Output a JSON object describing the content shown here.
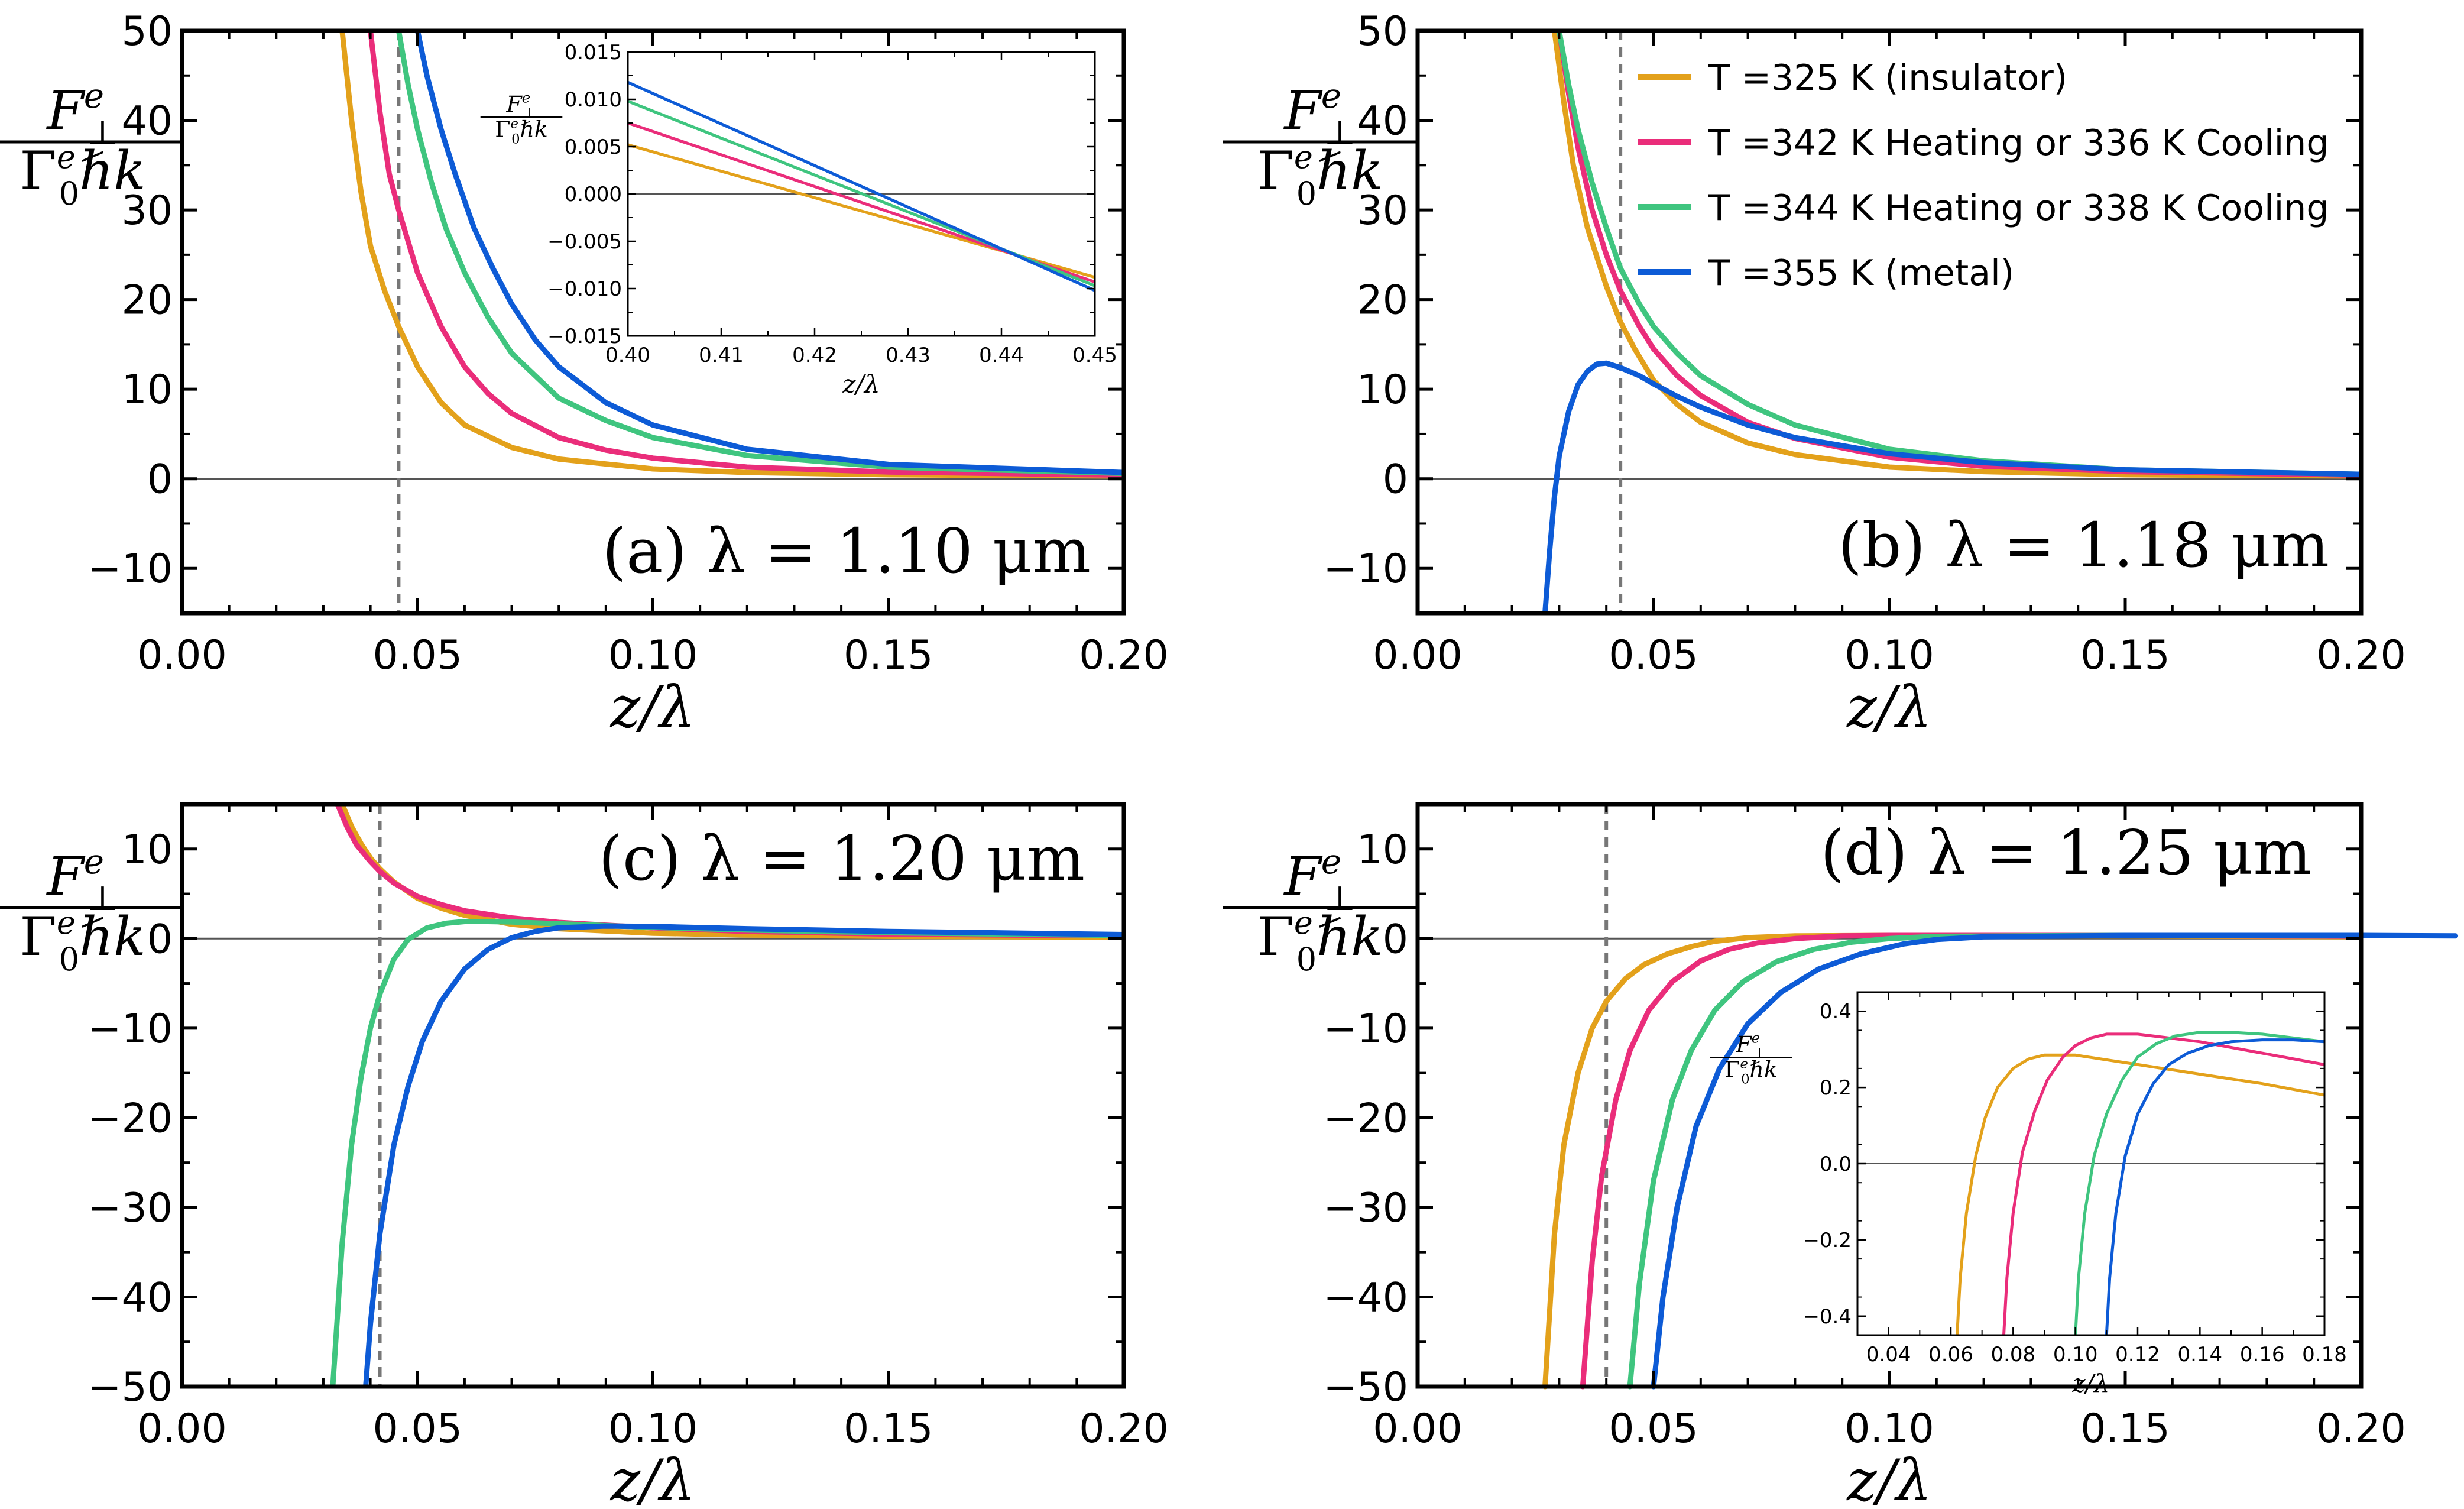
{
  "figure": {
    "y_label": {
      "numerator": "F",
      "num_sup": "e",
      "num_sub": "⊥",
      "denominator": "Γ",
      "den_sup": "e",
      "den_sub": "0",
      "den_rest": "ℏk"
    },
    "legend": [
      {
        "label": "T =325 K (insulator)",
        "color": "#E3A11B"
      },
      {
        "label": "T =342 K Heating or 336 K Cooling",
        "color": "#EA2D7A"
      },
      {
        "label": "T =344 K Heating or 338 K Cooling",
        "color": "#3FC57F"
      },
      {
        "label": "T =355 K (metal)",
        "color": "#0D5BD6"
      }
    ]
  },
  "chart_data": [
    {
      "panel": "a",
      "type": "line",
      "label": "(a) λ = 1.10 μm",
      "xlabel": "z/λ",
      "xlim": [
        0,
        0.2
      ],
      "ylim": [
        -15,
        50
      ],
      "xticks": [
        "0.00",
        "0.05",
        "0.10",
        "0.15",
        "0.20"
      ],
      "yticks": [
        "−10",
        "0",
        "10",
        "20",
        "30",
        "40",
        "50"
      ],
      "yticks_values": [
        -10,
        0,
        10,
        20,
        30,
        40,
        50
      ],
      "vline": 0.046,
      "series": [
        {
          "color": "#E3A11B",
          "x": [
            0.034,
            0.036,
            0.038,
            0.04,
            0.043,
            0.046,
            0.05,
            0.055,
            0.06,
            0.07,
            0.08,
            0.1,
            0.12,
            0.15,
            0.2
          ],
          "y": [
            50,
            40,
            32,
            26,
            21,
            17,
            12.5,
            8.5,
            6,
            3.5,
            2.2,
            1.1,
            0.7,
            0.45,
            0.3
          ]
        },
        {
          "color": "#EA2D7A",
          "x": [
            0.04,
            0.042,
            0.044,
            0.046,
            0.05,
            0.055,
            0.06,
            0.065,
            0.07,
            0.08,
            0.09,
            0.1,
            0.12,
            0.15,
            0.2
          ],
          "y": [
            50,
            41,
            34,
            30,
            23,
            17,
            12.5,
            9.5,
            7.3,
            4.6,
            3.2,
            2.3,
            1.3,
            0.75,
            0.4
          ]
        },
        {
          "color": "#3FC57F",
          "x": [
            0.046,
            0.048,
            0.05,
            0.053,
            0.056,
            0.06,
            0.065,
            0.07,
            0.08,
            0.09,
            0.1,
            0.12,
            0.15,
            0.2
          ],
          "y": [
            50,
            44,
            39,
            33,
            28,
            23,
            18,
            14,
            9,
            6.5,
            4.6,
            2.6,
            1.3,
            0.6
          ]
        },
        {
          "color": "#0D5BD6",
          "x": [
            0.05,
            0.052,
            0.055,
            0.058,
            0.062,
            0.066,
            0.07,
            0.075,
            0.08,
            0.09,
            0.1,
            0.12,
            0.15,
            0.2
          ],
          "y": [
            50,
            45,
            39,
            34,
            28,
            23.5,
            19.5,
            15.5,
            12.5,
            8.5,
            6,
            3.3,
            1.6,
            0.7
          ]
        }
      ],
      "inset": {
        "xlabel": "z/λ",
        "xlim": [
          0.4,
          0.45
        ],
        "ylim": [
          -0.015,
          0.015
        ],
        "xticks": [
          "0.40",
          "0.41",
          "0.42",
          "0.43",
          "0.44",
          "0.45"
        ],
        "yticks": [
          "0.015",
          "0.010",
          "0.005",
          "0.000",
          "−0.005",
          "−0.010",
          "−0.015"
        ],
        "yticks_values": [
          0.015,
          0.01,
          0.005,
          0,
          -0.005,
          -0.01,
          -0.015
        ],
        "series": [
          {
            "color": "#E3A11B",
            "x": [
              0.4,
              0.45
            ],
            "y": [
              0.0052,
              -0.0088
            ]
          },
          {
            "color": "#EA2D7A",
            "x": [
              0.4,
              0.45
            ],
            "y": [
              0.0075,
              -0.0093
            ]
          },
          {
            "color": "#3FC57F",
            "x": [
              0.4,
              0.45
            ],
            "y": [
              0.0098,
              -0.0097
            ]
          },
          {
            "color": "#0D5BD6",
            "x": [
              0.4,
              0.45
            ],
            "y": [
              0.0118,
              -0.0102
            ]
          }
        ]
      }
    },
    {
      "panel": "b",
      "type": "line",
      "label": "(b) λ = 1.18 μm",
      "xlabel": "z/λ",
      "xlim": [
        0,
        0.2
      ],
      "ylim": [
        -15,
        50
      ],
      "xticks": [
        "0.00",
        "0.05",
        "0.10",
        "0.15",
        "0.20"
      ],
      "yticks": [
        "−10",
        "0",
        "10",
        "20",
        "30",
        "40",
        "50"
      ],
      "yticks_values": [
        -10,
        0,
        10,
        20,
        30,
        40,
        50
      ],
      "vline": 0.043,
      "legend_position": "top-right",
      "series": [
        {
          "color": "#E3A11B",
          "x": [
            0.029,
            0.031,
            0.033,
            0.036,
            0.04,
            0.043,
            0.046,
            0.05,
            0.055,
            0.06,
            0.07,
            0.08,
            0.1,
            0.12,
            0.15,
            0.2
          ],
          "y": [
            50,
            42,
            35,
            28,
            21.5,
            17.5,
            14.5,
            11,
            8.3,
            6.3,
            4,
            2.7,
            1.3,
            0.8,
            0.45,
            0.3
          ]
        },
        {
          "color": "#EA2D7A",
          "x": [
            0.03,
            0.032,
            0.034,
            0.037,
            0.04,
            0.043,
            0.047,
            0.05,
            0.055,
            0.06,
            0.07,
            0.08,
            0.1,
            0.12,
            0.15,
            0.2
          ],
          "y": [
            50,
            43,
            37,
            30,
            25,
            21,
            17,
            14.5,
            11.5,
            9.3,
            6.3,
            4.5,
            2.4,
            1.4,
            0.8,
            0.4
          ]
        },
        {
          "color": "#3FC57F",
          "x": [
            0.03,
            0.032,
            0.034,
            0.037,
            0.04,
            0.043,
            0.047,
            0.05,
            0.055,
            0.06,
            0.07,
            0.08,
            0.1,
            0.12,
            0.15,
            0.2
          ],
          "y": [
            50,
            44,
            39,
            33,
            28,
            23.5,
            19.5,
            17,
            14,
            11.5,
            8.3,
            6,
            3.3,
            2,
            1,
            0.5
          ]
        },
        {
          "color": "#0D5BD6",
          "x": [
            0.027,
            0.028,
            0.029,
            0.03,
            0.032,
            0.034,
            0.036,
            0.038,
            0.04,
            0.043,
            0.047,
            0.05,
            0.055,
            0.06,
            0.07,
            0.08,
            0.1,
            0.12,
            0.15,
            0.2
          ],
          "y": [
            -15,
            -8,
            -2,
            2.5,
            7.5,
            10.5,
            12,
            12.8,
            12.9,
            12.4,
            11.5,
            10.6,
            9.2,
            8,
            6,
            4.6,
            2.8,
            1.8,
            1,
            0.5
          ]
        }
      ]
    },
    {
      "panel": "c",
      "type": "line",
      "label": "(c) λ = 1.20 μm",
      "xlabel": "z/λ",
      "xlim": [
        0,
        0.2
      ],
      "ylim": [
        -50,
        15
      ],
      "xticks": [
        "0.00",
        "0.05",
        "0.10",
        "0.15",
        "0.20"
      ],
      "yticks": [
        "−50",
        "−40",
        "−30",
        "−20",
        "−10",
        "0",
        "10"
      ],
      "yticks_values": [
        -50,
        -40,
        -30,
        -20,
        -10,
        0,
        10
      ],
      "vline": 0.042,
      "series": [
        {
          "color": "#E3A11B",
          "x": [
            0.034,
            0.036,
            0.038,
            0.04,
            0.042,
            0.045,
            0.05,
            0.055,
            0.06,
            0.07,
            0.08,
            0.1,
            0.12,
            0.15,
            0.2
          ],
          "y": [
            15,
            12.5,
            10.6,
            9,
            7.8,
            6.3,
            4.5,
            3.4,
            2.6,
            1.6,
            1.1,
            0.6,
            0.4,
            0.25,
            0.15
          ]
        },
        {
          "color": "#EA2D7A",
          "x": [
            0.033,
            0.035,
            0.037,
            0.04,
            0.042,
            0.045,
            0.05,
            0.055,
            0.06,
            0.07,
            0.08,
            0.09,
            0.1,
            0.12,
            0.15,
            0.2
          ],
          "y": [
            15,
            12.5,
            10.5,
            8.6,
            7.5,
            6.2,
            4.7,
            3.8,
            3.1,
            2.3,
            1.8,
            1.5,
            1.2,
            0.8,
            0.5,
            0.3
          ]
        },
        {
          "color": "#3FC57F",
          "x": [
            0.032,
            0.034,
            0.036,
            0.038,
            0.04,
            0.042,
            0.045,
            0.048,
            0.052,
            0.056,
            0.06,
            0.065,
            0.07,
            0.08,
            0.1,
            0.12,
            0.15,
            0.2
          ],
          "y": [
            -50,
            -34,
            -23,
            -15.5,
            -10,
            -6.2,
            -2.3,
            -0.1,
            1.2,
            1.7,
            1.9,
            1.9,
            1.85,
            1.65,
            1.25,
            0.95,
            0.65,
            0.35
          ]
        },
        {
          "color": "#0D5BD6",
          "x": [
            0.039,
            0.04,
            0.042,
            0.045,
            0.048,
            0.051,
            0.055,
            0.06,
            0.065,
            0.07,
            0.075,
            0.08,
            0.09,
            0.1,
            0.12,
            0.15,
            0.2
          ],
          "y": [
            -50,
            -43,
            -33,
            -23,
            -16.5,
            -11.5,
            -7,
            -3.4,
            -1.2,
            0.1,
            0.8,
            1.2,
            1.4,
            1.35,
            1.1,
            0.8,
            0.45
          ]
        }
      ]
    },
    {
      "panel": "d",
      "type": "line",
      "label": "(d) λ = 1.25 μm",
      "xlabel": "z/λ",
      "xlim": [
        0,
        0.2
      ],
      "ylim": [
        -50,
        15
      ],
      "xticks": [
        "0.00",
        "0.05",
        "0.10",
        "0.15",
        "0.20"
      ],
      "yticks": [
        "−50",
        "−40",
        "−30",
        "−20",
        "−10",
        "0",
        "10"
      ],
      "yticks_values": [
        -50,
        -40,
        -30,
        -20,
        -10,
        0,
        10
      ],
      "vline": 0.04,
      "series": [
        {
          "color": "#E3A11B",
          "x": [
            0.027,
            0.029,
            0.031,
            0.034,
            0.037,
            0.04,
            0.044,
            0.048,
            0.053,
            0.058,
            0.063,
            0.07,
            0.08,
            0.1,
            0.15,
            0.2
          ],
          "y": [
            -50,
            -33,
            -23,
            -15,
            -10,
            -7,
            -4.5,
            -2.9,
            -1.7,
            -0.9,
            -0.3,
            0.1,
            0.3,
            0.35,
            0.3,
            0.2
          ]
        },
        {
          "color": "#EA2D7A",
          "x": [
            0.035,
            0.037,
            0.039,
            0.042,
            0.045,
            0.049,
            0.054,
            0.06,
            0.066,
            0.072,
            0.08,
            0.09,
            0.1,
            0.15,
            0.2
          ],
          "y": [
            -50,
            -36,
            -26.5,
            -18,
            -12.5,
            -8,
            -4.8,
            -2.5,
            -1.2,
            -0.5,
            0,
            0.3,
            0.35,
            0.35,
            0.25
          ]
        },
        {
          "color": "#3FC57F",
          "x": [
            0.045,
            0.047,
            0.05,
            0.054,
            0.058,
            0.063,
            0.069,
            0.076,
            0.084,
            0.092,
            0.1,
            0.11,
            0.15,
            0.2
          ],
          "y": [
            -50,
            -38.5,
            -27,
            -18,
            -12.5,
            -8,
            -4.8,
            -2.6,
            -1.2,
            -0.4,
            0,
            0.25,
            0.35,
            0.3
          ]
        },
        {
          "color": "#0D5BD6",
          "x": [
            0.05,
            0.052,
            0.055,
            0.059,
            0.064,
            0.07,
            0.077,
            0.085,
            0.094,
            0.103,
            0.11,
            0.12,
            0.15,
            0.2,
            0.22
          ],
          "y": [
            -50,
            -40,
            -30,
            -21,
            -14.5,
            -9.5,
            -6,
            -3.4,
            -1.7,
            -0.6,
            -0.1,
            0.2,
            0.35,
            0.35,
            0.3
          ]
        }
      ],
      "inset": {
        "xlabel": "z/λ",
        "xlim": [
          0.03,
          0.18
        ],
        "ylim": [
          -0.45,
          0.45
        ],
        "xticks": [
          "0.04",
          "0.06",
          "0.08",
          "0.10",
          "0.12",
          "0.14",
          "0.16",
          "0.18"
        ],
        "yticks": [
          "0.4",
          "0.2",
          "0.0",
          "−0.2",
          "−0.4"
        ],
        "yticks_values": [
          0.4,
          0.2,
          0,
          -0.2,
          -0.4
        ],
        "series": [
          {
            "color": "#E3A11B",
            "x": [
              0.062,
              0.063,
              0.065,
              0.068,
              0.071,
              0.075,
              0.08,
              0.085,
              0.09,
              0.1,
              0.12,
              0.14,
              0.16,
              0.18
            ],
            "y": [
              -0.45,
              -0.3,
              -0.13,
              0.02,
              0.12,
              0.2,
              0.25,
              0.275,
              0.285,
              0.285,
              0.26,
              0.235,
              0.21,
              0.18
            ]
          },
          {
            "color": "#EA2D7A",
            "x": [
              0.077,
              0.078,
              0.08,
              0.083,
              0.087,
              0.091,
              0.096,
              0.1,
              0.105,
              0.11,
              0.12,
              0.13,
              0.14,
              0.16,
              0.18
            ],
            "y": [
              -0.45,
              -0.3,
              -0.13,
              0.03,
              0.14,
              0.22,
              0.28,
              0.31,
              0.33,
              0.34,
              0.34,
              0.33,
              0.32,
              0.29,
              0.26
            ]
          },
          {
            "color": "#3FC57F",
            "x": [
              0.1,
              0.101,
              0.103,
              0.106,
              0.11,
              0.115,
              0.12,
              0.126,
              0.132,
              0.14,
              0.15,
              0.16,
              0.17,
              0.18
            ],
            "y": [
              -0.45,
              -0.3,
              -0.13,
              0.02,
              0.13,
              0.22,
              0.28,
              0.315,
              0.335,
              0.345,
              0.345,
              0.34,
              0.33,
              0.32
            ]
          },
          {
            "color": "#0D5BD6",
            "x": [
              0.11,
              0.111,
              0.113,
              0.116,
              0.12,
              0.125,
              0.13,
              0.136,
              0.143,
              0.15,
              0.16,
              0.17,
              0.18
            ],
            "y": [
              -0.45,
              -0.3,
              -0.13,
              0.02,
              0.13,
              0.21,
              0.26,
              0.29,
              0.31,
              0.32,
              0.325,
              0.325,
              0.32
            ]
          }
        ]
      }
    }
  ]
}
